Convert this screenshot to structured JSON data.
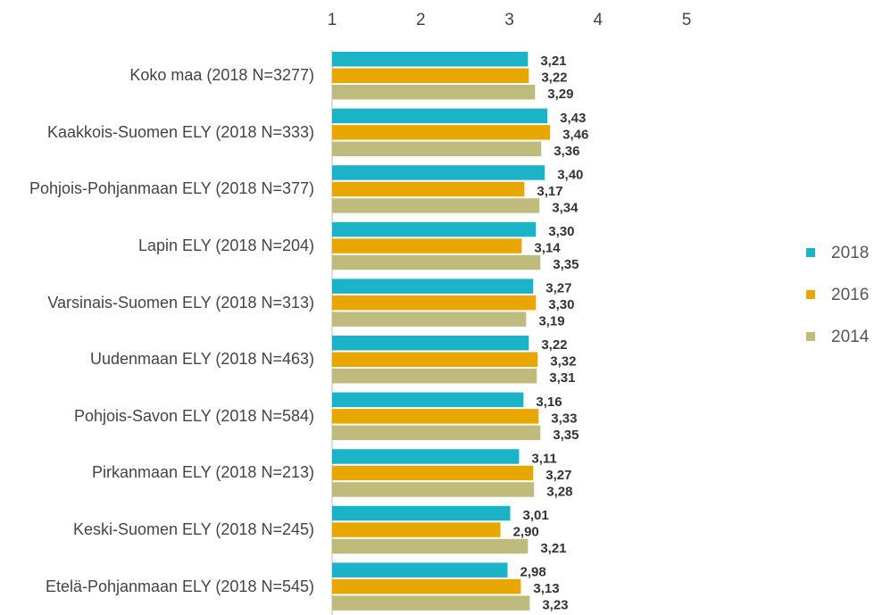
{
  "chart_data": {
    "type": "bar",
    "orientation": "horizontal",
    "categories": [
      "Koko maa (2018 N=3277)",
      "Kaakkois-Suomen ELY (2018 N=333)",
      "Pohjois-Pohjanmaan ELY (2018 N=377)",
      "Lapin ELY (2018 N=204)",
      "Varsinais-Suomen ELY (2018 N=313)",
      "Uudenmaan ELY (2018 N=463)",
      "Pohjois-Savon ELY (2018 N=584)",
      "Pirkanmaan ELY (2018 N=213)",
      "Keski-Suomen ELY (2018 N=245)",
      "Etelä-Pohjanmaan ELY (2018 N=545)"
    ],
    "series": [
      {
        "name": "2018",
        "color": "#1ab3c8",
        "values": [
          3.21,
          3.43,
          3.4,
          3.3,
          3.27,
          3.22,
          3.16,
          3.11,
          3.01,
          2.98
        ],
        "value_labels": [
          "3,21",
          "3,43",
          "3,40",
          "3,30",
          "3,27",
          "3,22",
          "3,16",
          "3,11",
          "3,01",
          "2,98"
        ]
      },
      {
        "name": "2016",
        "color": "#e8a700",
        "values": [
          3.22,
          3.46,
          3.17,
          3.14,
          3.3,
          3.32,
          3.33,
          3.27,
          2.9,
          3.13
        ],
        "value_labels": [
          "3,22",
          "3,46",
          "3,17",
          "3,14",
          "3,30",
          "3,32",
          "3,33",
          "3,27",
          "2,90",
          "3,13"
        ]
      },
      {
        "name": "2014",
        "color": "#bfbb7d",
        "values": [
          3.29,
          3.36,
          3.34,
          3.35,
          3.19,
          3.31,
          3.35,
          3.28,
          3.21,
          3.23
        ],
        "value_labels": [
          "3,29",
          "3,36",
          "3,34",
          "3,35",
          "3,19",
          "3,31",
          "3,35",
          "3,28",
          "3,21",
          "3,23"
        ]
      }
    ],
    "xlim": [
      1,
      5
    ],
    "xticks": [
      1,
      2,
      3,
      4,
      5
    ],
    "legend": "right"
  }
}
